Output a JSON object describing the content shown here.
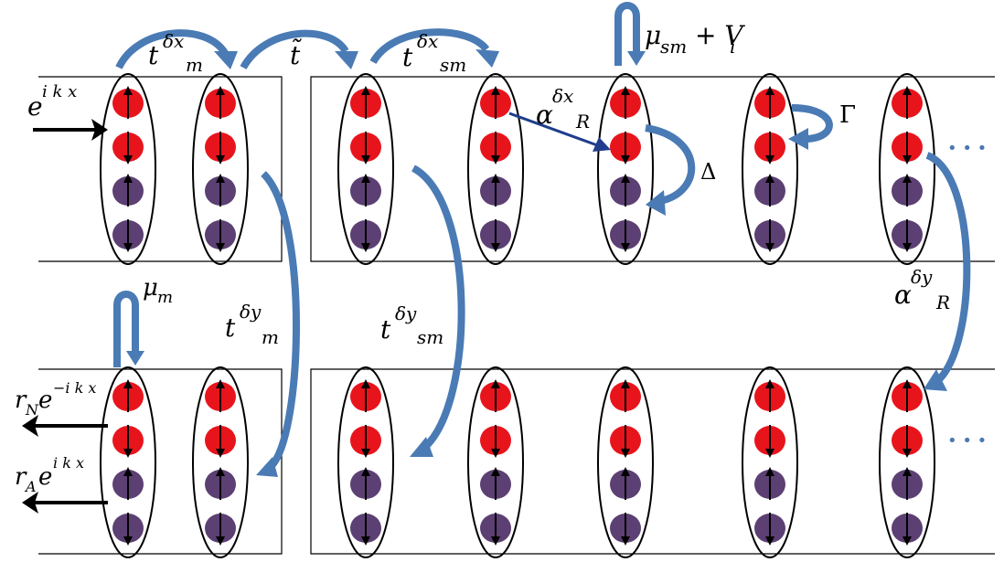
{
  "labels": {
    "t_dx_m": {
      "base": "t",
      "sup": "δx",
      "sub": "m"
    },
    "t_tilde": {
      "base": "t̃"
    },
    "t_dx_sm": {
      "base": "t",
      "sup": "δx",
      "sub": "sm"
    },
    "mu_sm_vi": {
      "mu": "μ",
      "sub": "sm",
      "rest": "+ V",
      "rest_sub": "i"
    },
    "e_ikx": {
      "base": "e",
      "sup": "i k x"
    },
    "alpha_dx_r": {
      "base": "α",
      "sup": "δx",
      "sub": "R"
    },
    "gamma": "Γ",
    "delta": "Δ",
    "mu_m": {
      "mu": "μ",
      "sub": "m"
    },
    "t_dy_m": {
      "base": "t",
      "sup": "δy",
      "sub": "m"
    },
    "t_dy_sm": {
      "base": "t",
      "sup": "δy",
      "sub": "sm"
    },
    "alpha_dy_r": {
      "base": "α",
      "sup": "δy",
      "sub": "R"
    },
    "rn_term": {
      "r": "r",
      "r_sub": "N",
      "e": "e",
      "sup": "−i k x"
    },
    "ra_term": {
      "r": "r",
      "r_sub": "A",
      "e": "e",
      "sup": "i k x"
    },
    "ellipsis_top": "• • •",
    "ellipsis_bottom": "• • •"
  },
  "colors": {
    "spin_up_red": "#e8141c",
    "spin_down_purple": "#5c3f73",
    "hop_arrow_blue": "#4a7bb5",
    "rashba_arrow_navy": "#1f3d8c",
    "line_black": "#000000",
    "ellipsis_blue": "#4a78b0"
  }
}
